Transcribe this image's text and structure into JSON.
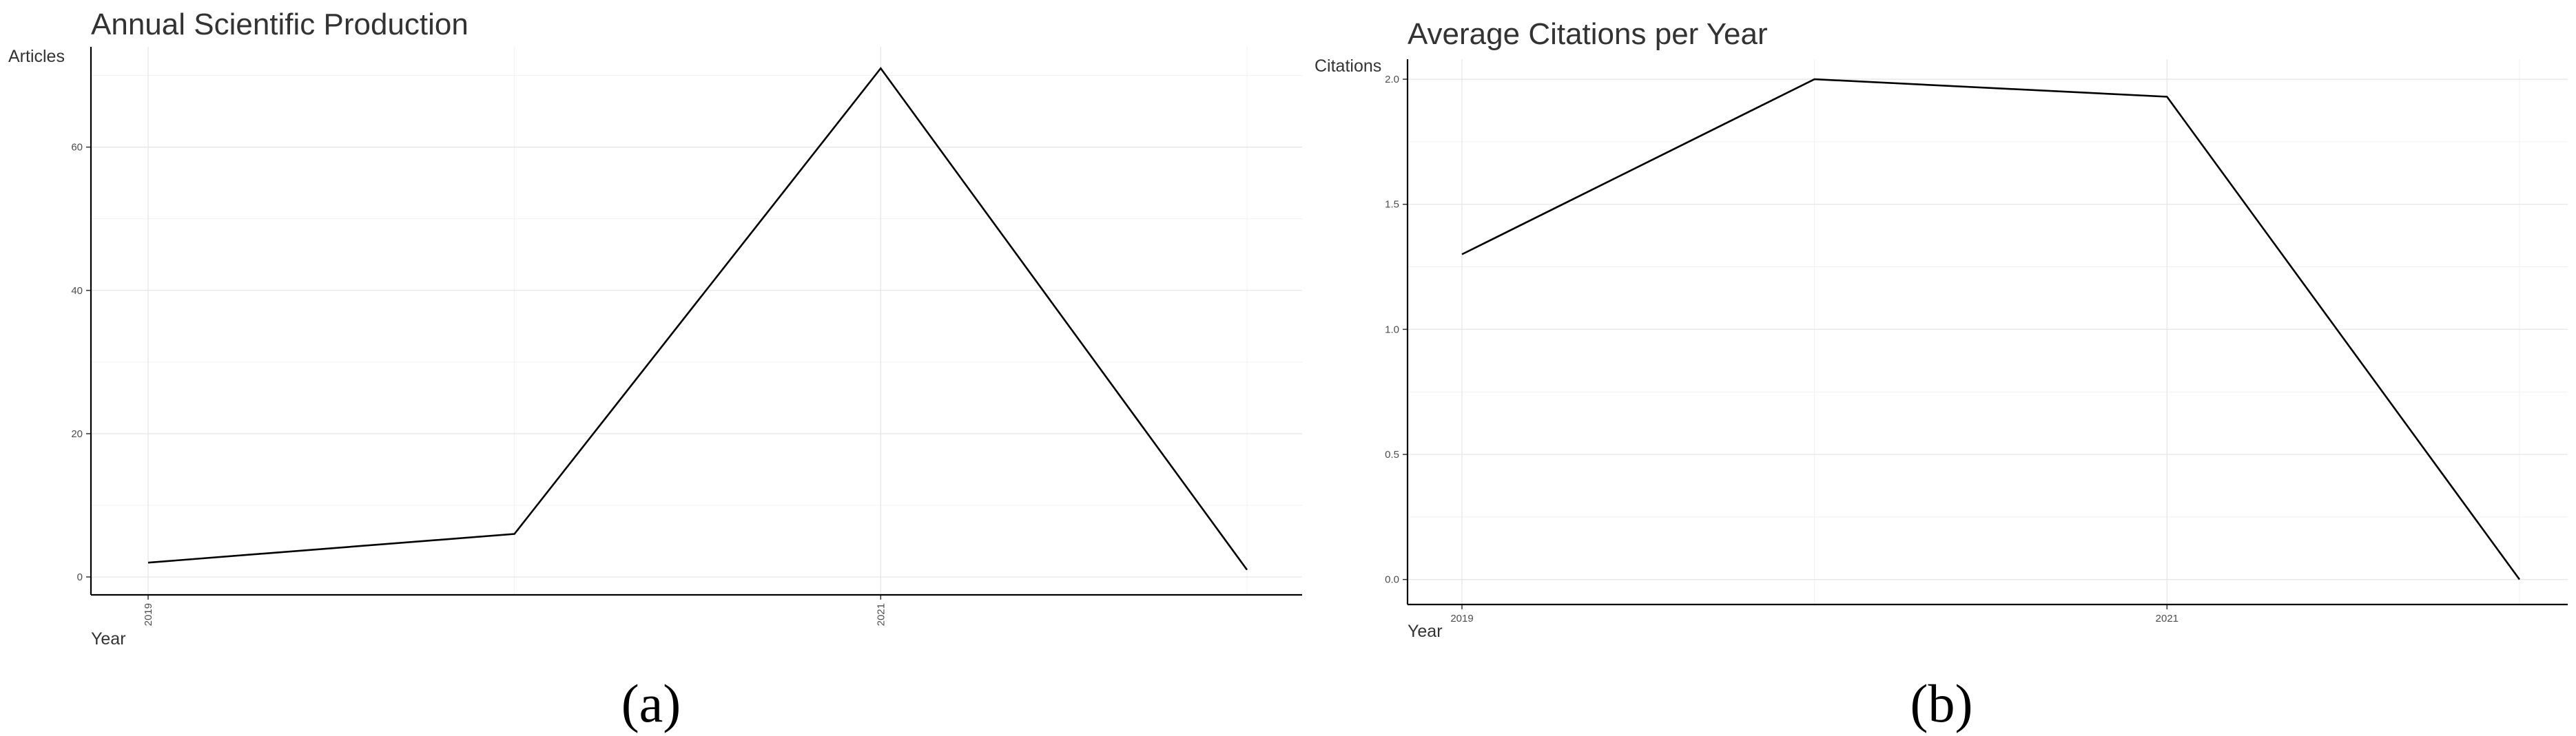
{
  "chart_data": [
    {
      "type": "line",
      "title": "Annual Scientific Production",
      "xlabel": "Year",
      "ylabel": "Articles",
      "x": [
        2019,
        2020,
        2021,
        2022
      ],
      "values": [
        2,
        6,
        71,
        1
      ],
      "xticks": [
        "2019",
        "2021"
      ],
      "yticks": [
        "0",
        "20",
        "40",
        "60"
      ],
      "ylim": [
        -2.5,
        74
      ],
      "grid": true,
      "legend": "none",
      "panel_label": "(a)"
    },
    {
      "type": "line",
      "title": "Average Citations per Year",
      "xlabel": "Year",
      "ylabel": "Citations",
      "x": [
        2019,
        2020,
        2021,
        2022
      ],
      "values": [
        1.3,
        2.0,
        1.93,
        0.0
      ],
      "xticks": [
        "2019",
        "2021"
      ],
      "yticks": [
        "0.0",
        "0.5",
        "1.0",
        "1.5",
        "2.0"
      ],
      "ylim": [
        -0.1,
        2.08
      ],
      "grid": true,
      "legend": "none",
      "panel_label": "(b)"
    }
  ],
  "colors": {
    "line": "#000000",
    "grid": "#e6e6e6",
    "text": "#333333"
  }
}
